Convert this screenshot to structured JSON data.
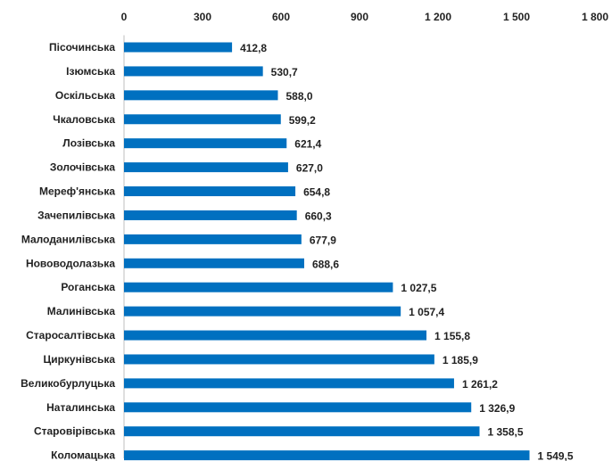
{
  "chart_data": {
    "type": "bar",
    "orientation": "horizontal",
    "title": "",
    "xlabel": "",
    "ylabel": "",
    "xlim": [
      0,
      1800
    ],
    "x_ticks": [
      0,
      300,
      600,
      900,
      1200,
      1500,
      1800
    ],
    "x_tick_labels": [
      "0",
      "300",
      "600",
      "900",
      "1 200",
      "1 500",
      "1 800"
    ],
    "x_axis_position": "top",
    "grid": false,
    "bar_color": "#0070C0",
    "categories": [
      "Пісочинська",
      "Ізюмська",
      "Оскільська",
      "Чкаловська",
      "Лозівська",
      "Золочівська",
      "Мереф'янська",
      "Зачепилівська",
      "Малоданилівська",
      "Нововодолазька",
      "Роганська",
      "Малинівська",
      "Старосалтівська",
      "Циркунівська",
      "Великобурлуцька",
      "Наталинська",
      "Старовірівська",
      "Коломацька"
    ],
    "values": [
      412.8,
      530.7,
      588.0,
      599.2,
      621.4,
      627.0,
      654.8,
      660.3,
      677.9,
      688.6,
      1027.5,
      1057.4,
      1155.8,
      1185.9,
      1261.2,
      1326.9,
      1358.5,
      1549.5
    ],
    "value_labels": [
      "412,8",
      "530,7",
      "588,0",
      "599,2",
      "621,4",
      "627,0",
      "654,8",
      "660,3",
      "677,9",
      "688,6",
      "1 027,5",
      "1 057,4",
      "1 155,8",
      "1 185,9",
      "1 261,2",
      "1 326,9",
      "1 358,5",
      "1 549,5"
    ]
  }
}
